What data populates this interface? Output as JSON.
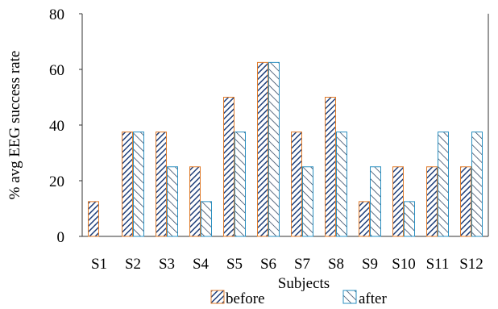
{
  "chart_data": {
    "type": "bar",
    "categories": [
      "S1",
      "S2",
      "S3",
      "S4",
      "S5",
      "S6",
      "S7",
      "S8",
      "S9",
      "S10",
      "S11",
      "S12"
    ],
    "series": [
      {
        "name": "before",
        "values": [
          12.5,
          37.5,
          37.5,
          25,
          50,
          62.5,
          37.5,
          50,
          12.5,
          25,
          25,
          25
        ]
      },
      {
        "name": "after",
        "values": [
          0,
          37.5,
          25,
          12.5,
          37.5,
          62.5,
          25,
          37.5,
          25,
          12.5,
          37.5,
          37.5
        ]
      }
    ],
    "title": "",
    "xlabel": "Subjects",
    "ylabel": "% avg EEG success rate",
    "ylim": [
      0,
      80
    ],
    "yticks": [
      0,
      20,
      40,
      60,
      80
    ],
    "grid": false,
    "legend": "bottom"
  },
  "colors": {
    "before_edge": "#e07b2a",
    "before_hatch": "#1f3f7a",
    "after_edge": "#2a8fc0",
    "after_hatch": "#1a3050",
    "axis": "#333333"
  }
}
